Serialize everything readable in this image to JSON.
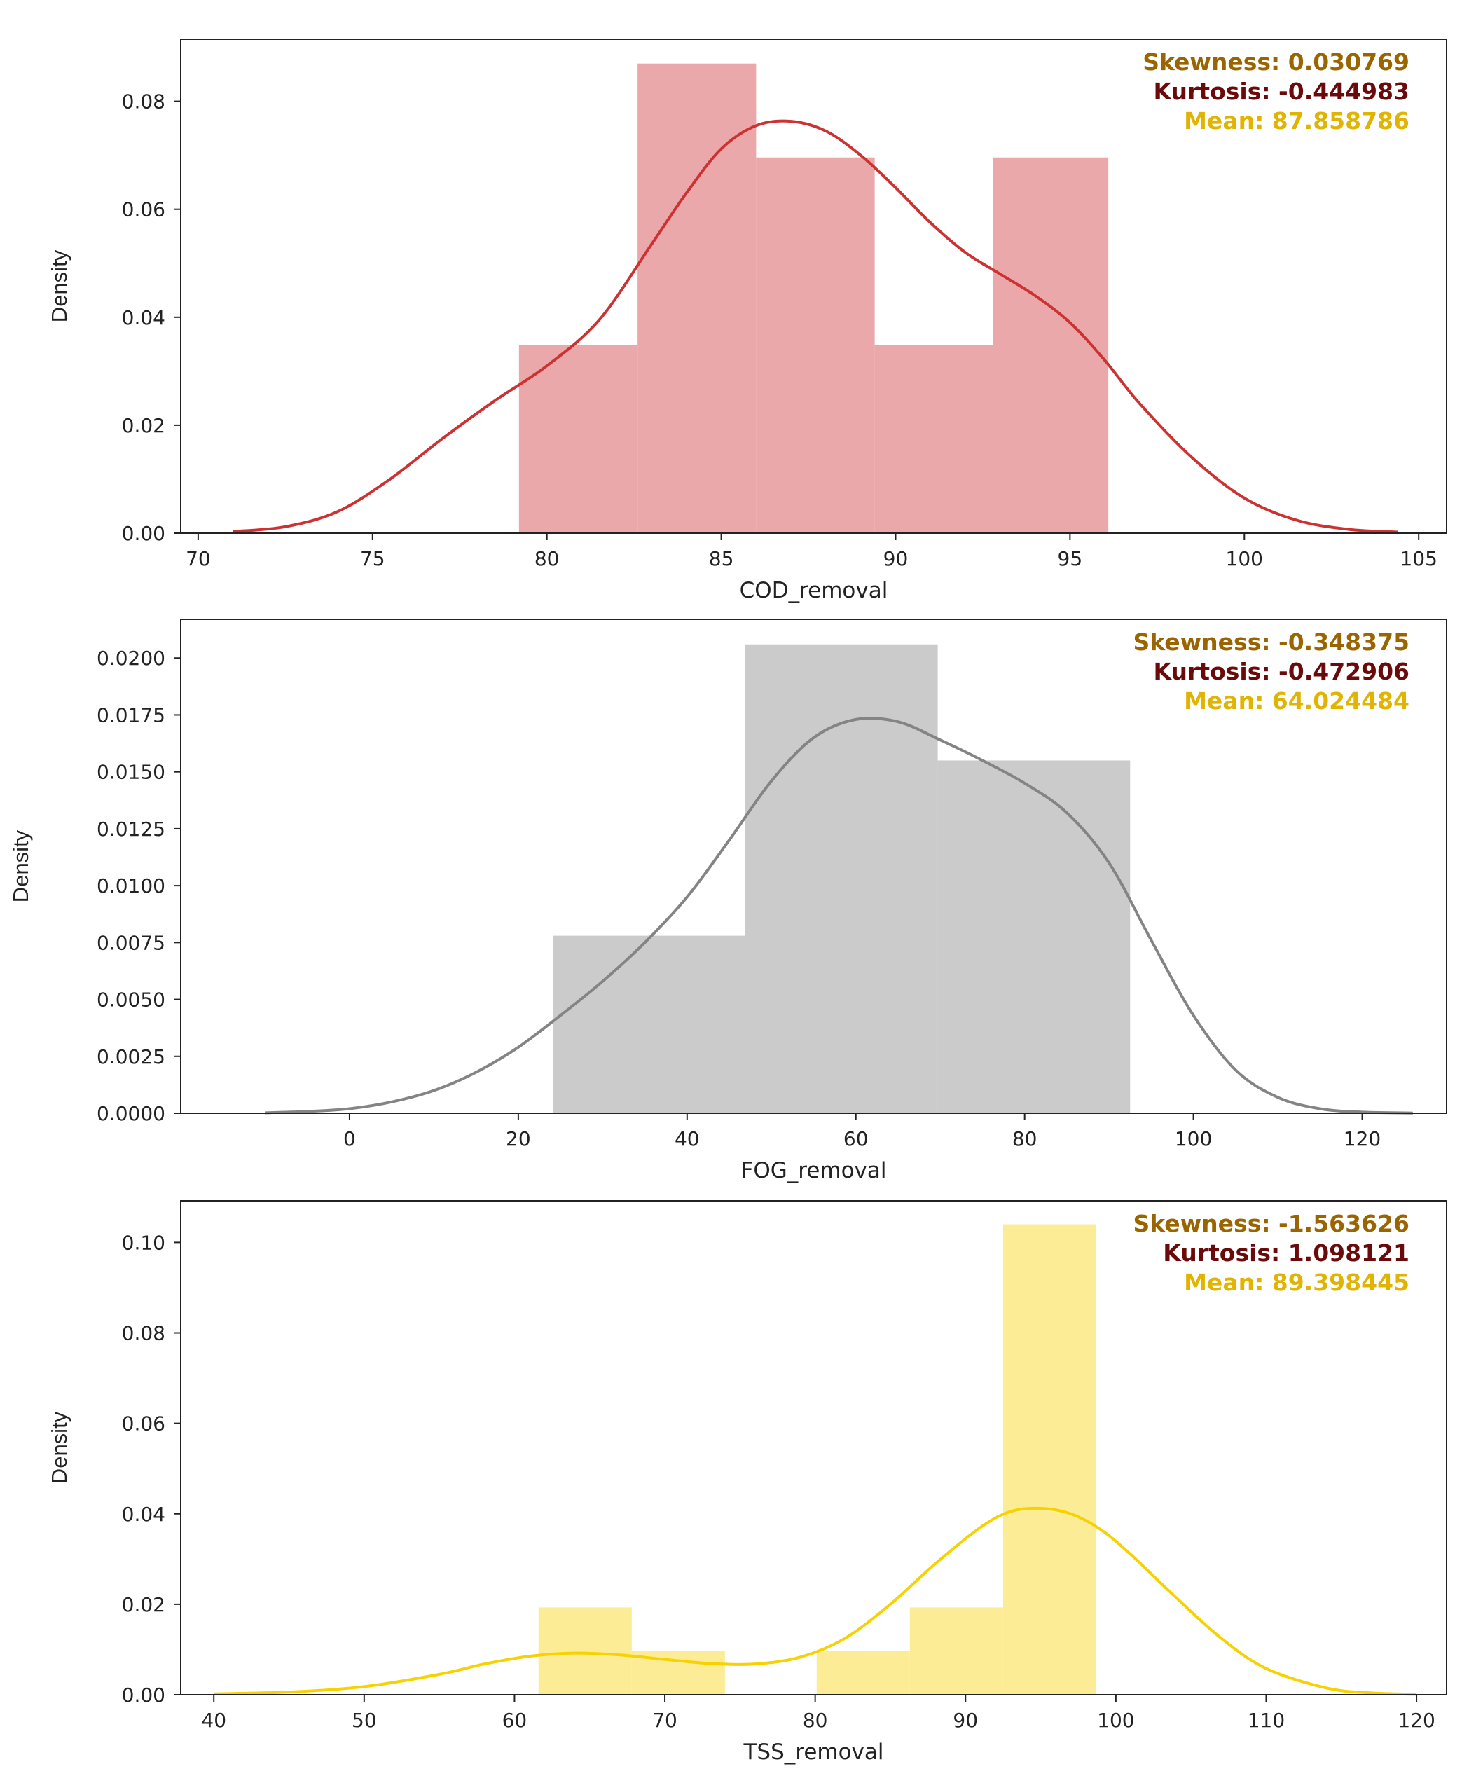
{
  "chart_data": [
    {
      "type": "histogram",
      "xlabel": "COD_removal",
      "ylabel": "Density",
      "xlim": [
        69.5,
        105.8
      ],
      "ylim": [
        0,
        0.0915
      ],
      "xticks": [
        70,
        75,
        80,
        85,
        90,
        95,
        100,
        105
      ],
      "yticks": [
        0.0,
        0.02,
        0.04,
        0.06,
        0.08
      ],
      "ytick_labels": [
        "0.00",
        "0.02",
        "0.04",
        "0.06",
        "0.08"
      ],
      "bar_color": "#eaa8aa",
      "line_color": "#cd3232",
      "bins": [
        {
          "x0": 79.2,
          "x1": 82.6,
          "density": 0.0348
        },
        {
          "x0": 82.6,
          "x1": 86.0,
          "density": 0.087
        },
        {
          "x0": 86.0,
          "x1": 89.4,
          "density": 0.0696
        },
        {
          "x0": 89.4,
          "x1": 92.8,
          "density": 0.0348
        },
        {
          "x0": 92.8,
          "x1": 96.1,
          "density": 0.0696
        }
      ],
      "kde": {
        "x": [
          71.0,
          72.5,
          74.0,
          75.5,
          77.0,
          78.5,
          80.0,
          81.5,
          83.0,
          84.0,
          85.0,
          86.0,
          87.0,
          88.0,
          89.0,
          90.0,
          91.0,
          92.0,
          93.0,
          94.0,
          95.0,
          96.0,
          97.0,
          98.5,
          100.0,
          101.5,
          103.0,
          104.4
        ],
        "y": [
          0.0003,
          0.0012,
          0.004,
          0.01,
          0.0175,
          0.0245,
          0.031,
          0.0395,
          0.0535,
          0.063,
          0.0712,
          0.0755,
          0.0763,
          0.0745,
          0.07,
          0.064,
          0.0575,
          0.052,
          0.048,
          0.044,
          0.039,
          0.032,
          0.024,
          0.014,
          0.0065,
          0.0024,
          0.0007,
          0.0002
        ]
      },
      "annotations": [
        {
          "text": "Skewness: 0.030769",
          "color": "#9a6500"
        },
        {
          "text": "Kurtosis: -0.444983",
          "color": "#6b0a0a"
        },
        {
          "text": "Mean: 87.858786",
          "color": "#e0b400"
        }
      ]
    },
    {
      "type": "histogram",
      "xlabel": "FOG_removal",
      "ylabel": "Density",
      "xlim": [
        -20.0,
        130.0
      ],
      "ylim": [
        0,
        0.0217
      ],
      "xticks": [
        0,
        20,
        40,
        60,
        80,
        100,
        120
      ],
      "yticks": [
        0.0,
        0.0025,
        0.005,
        0.0075,
        0.01,
        0.0125,
        0.015,
        0.0175,
        0.02
      ],
      "ytick_labels": [
        "0.0000",
        "0.0025",
        "0.0050",
        "0.0075",
        "0.0100",
        "0.0125",
        "0.0150",
        "0.0175",
        "0.0200"
      ],
      "bar_color": "#cbcbcb",
      "line_color": "#848484",
      "bins": [
        {
          "x0": 24.1,
          "x1": 46.9,
          "density": 0.0078
        },
        {
          "x0": 46.9,
          "x1": 69.7,
          "density": 0.0206
        },
        {
          "x0": 69.7,
          "x1": 92.5,
          "density": 0.0155
        }
      ],
      "kde": {
        "x": [
          -10,
          -5,
          0,
          5,
          10,
          15,
          20,
          25,
          30,
          35,
          40,
          45,
          50,
          55,
          60,
          65,
          70,
          75,
          80,
          85,
          90,
          95,
          100,
          105,
          110,
          115,
          120,
          126
        ],
        "y": [
          2e-05,
          8e-05,
          0.0002,
          0.0005,
          0.001,
          0.0018,
          0.0029,
          0.0043,
          0.0058,
          0.0075,
          0.0095,
          0.012,
          0.0146,
          0.0165,
          0.0173,
          0.0172,
          0.0164,
          0.0155,
          0.0145,
          0.0132,
          0.011,
          0.0076,
          0.0043,
          0.0019,
          0.0007,
          0.0002,
          5e-05,
          1e-05
        ]
      },
      "annotations": [
        {
          "text": "Skewness: -0.348375",
          "color": "#9a6500"
        },
        {
          "text": "Kurtosis: -0.472906",
          "color": "#6b0a0a"
        },
        {
          "text": "Mean: 64.024484",
          "color": "#e0b400"
        }
      ]
    },
    {
      "type": "histogram",
      "xlabel": "TSS_removal",
      "ylabel": "Density",
      "xlim": [
        37.8,
        122.0
      ],
      "ylim": [
        0,
        0.1092
      ],
      "xticks": [
        40,
        50,
        60,
        70,
        80,
        90,
        100,
        110,
        120
      ],
      "yticks": [
        0.0,
        0.02,
        0.04,
        0.06,
        0.08,
        0.1
      ],
      "ytick_labels": [
        "0.00",
        "0.02",
        "0.04",
        "0.06",
        "0.08",
        "0.10"
      ],
      "bar_color": "#fdec96",
      "line_color": "#f5d200",
      "bins": [
        {
          "x0": 61.6,
          "x1": 67.8,
          "density": 0.0193
        },
        {
          "x0": 67.8,
          "x1": 74.0,
          "density": 0.0097
        },
        {
          "x0": 74.0,
          "x1": 80.1,
          "density": 0.0
        },
        {
          "x0": 80.1,
          "x1": 86.3,
          "density": 0.0097
        },
        {
          "x0": 86.3,
          "x1": 92.5,
          "density": 0.0193
        },
        {
          "x0": 92.5,
          "x1": 98.7,
          "density": 0.104
        }
      ],
      "kde": {
        "x": [
          40,
          45,
          50,
          55,
          58,
          61,
          64,
          67,
          70,
          73,
          76,
          79,
          82,
          85,
          88,
          91,
          93,
          95,
          97,
          99,
          101,
          104,
          107,
          110,
          114,
          117,
          120
        ],
        "y": [
          0.0002,
          0.0006,
          0.0018,
          0.0045,
          0.0068,
          0.0085,
          0.0092,
          0.0088,
          0.0078,
          0.0069,
          0.0068,
          0.0083,
          0.0125,
          0.02,
          0.029,
          0.037,
          0.0405,
          0.0412,
          0.04,
          0.0365,
          0.031,
          0.0215,
          0.0125,
          0.0058,
          0.0015,
          0.0004,
          0.0001
        ]
      },
      "annotations": [
        {
          "text": "Skewness: -1.563626",
          "color": "#9a6500"
        },
        {
          "text": "Kurtosis: 1.098121",
          "color": "#6b0a0a"
        },
        {
          "text": "Mean: 89.398445",
          "color": "#e0b400"
        }
      ]
    }
  ]
}
